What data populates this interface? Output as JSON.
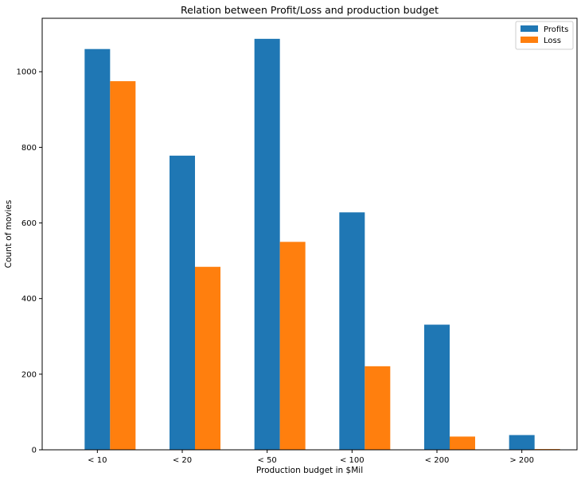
{
  "chart_data": {
    "type": "bar",
    "title": "Relation between Profit/Loss and production budget",
    "xlabel": "Production budget in $Mil",
    "ylabel": "Count of movies",
    "categories": [
      "< 10",
      "< 20",
      "< 50",
      "< 100",
      "< 200",
      "> 200"
    ],
    "series": [
      {
        "name": "Profits",
        "color": "#1f77b4",
        "values": [
          1060,
          778,
          1087,
          628,
          331,
          39
        ]
      },
      {
        "name": "Loss",
        "color": "#ff7f0e",
        "values": [
          975,
          484,
          550,
          221,
          35,
          2
        ]
      }
    ],
    "ylim": [
      0,
      1141.35
    ],
    "yticks": [
      0,
      200,
      400,
      600,
      800,
      1000
    ],
    "grid": false,
    "legend_position": "upper right"
  }
}
